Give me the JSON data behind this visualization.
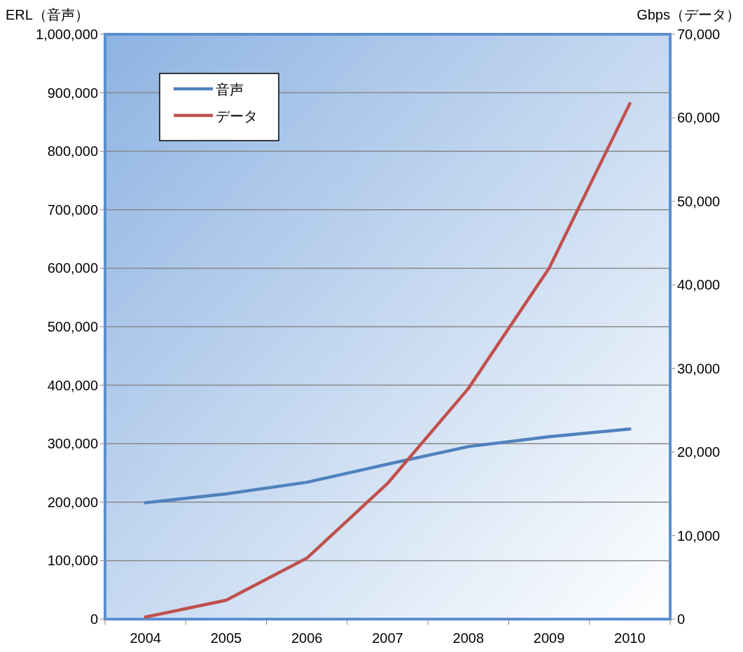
{
  "chart_data": {
    "type": "line",
    "ylabel": "ERL（音声）",
    "y2label": "Gbps（データ）",
    "categories": [
      "2004",
      "2005",
      "2006",
      "2007",
      "2008",
      "2009",
      "2010"
    ],
    "series": [
      {
        "name": "音声",
        "color": "#4f81bd",
        "values": [
          199000,
          214000,
          234000,
          265000,
          295000,
          312000,
          325000
        ]
      },
      {
        "name": "データ",
        "color": "#c0504d",
        "axis": "y2",
        "values": [
          250,
          2260,
          7300,
          16250,
          27600,
          42000,
          61700
        ]
      }
    ],
    "ylim": [
      0,
      1000000
    ],
    "yticks": [
      0,
      {
        "value": 100000,
        "label": "100,000"
      },
      {
        "value": 200000,
        "label": "200,000"
      },
      {
        "value": 300000,
        "label": "300,000"
      },
      {
        "value": 400000,
        "label": "400,000"
      },
      {
        "value": 500000,
        "label": "500,000"
      },
      {
        "value": 600000,
        "label": "600,000"
      },
      {
        "value": 700000,
        "label": "700,000"
      },
      {
        "value": 800000,
        "label": "800,000"
      },
      {
        "value": 900000,
        "label": "900,000"
      },
      {
        "value": 1000000,
        "label": "1,000,000"
      }
    ],
    "y2lim": [
      0,
      70000
    ],
    "y2ticks": [
      0,
      {
        "value": 10000,
        "label": "10,000"
      },
      {
        "value": 20000,
        "label": "20,000"
      },
      {
        "value": 30000,
        "label": "30,000"
      },
      {
        "value": 40000,
        "label": "40,000"
      },
      {
        "value": 50000,
        "label": "50,000"
      },
      {
        "value": 60000,
        "label": "60,000"
      },
      {
        "value": 70000,
        "label": "70,000"
      }
    ],
    "grid": "y",
    "legend": "top left",
    "marker": "none",
    "line_style": "solid"
  }
}
